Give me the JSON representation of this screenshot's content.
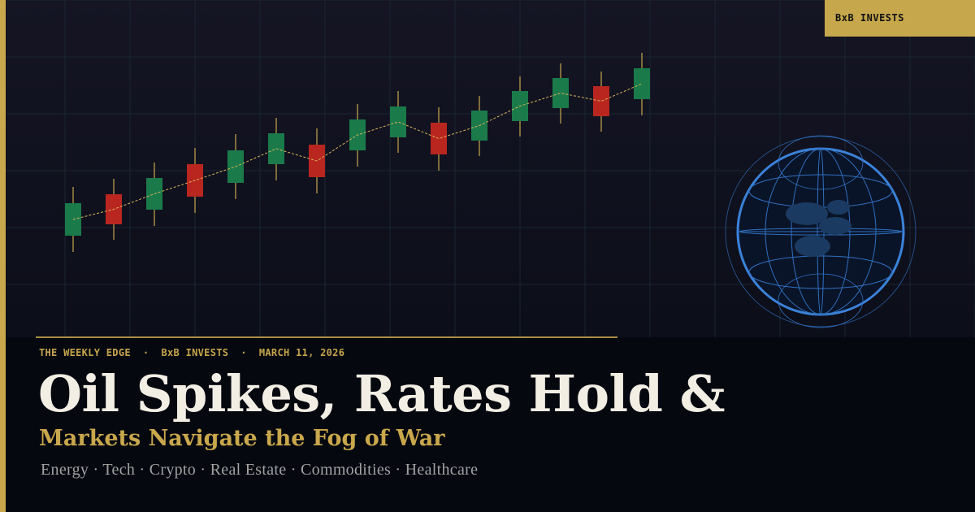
{
  "brand_badge": "BxB INVESTS",
  "kicker": "THE WEEKLY EDGE  ·  BxB INVESTS  ·  MARCH 11, 2026",
  "headline": "Oil Spikes, Rates Hold &",
  "subheadline": "Markets Navigate the Fog of War",
  "sectors": "Energy · Tech · Crypto · Real Estate · Commodities · Healthcare",
  "colors": {
    "accent_gold": "#c9a74c",
    "up": "#1a7a4a",
    "down": "#b8261f",
    "globe": "#2f74c9",
    "background": "#05080f"
  },
  "icons": {
    "globe": "globe-icon"
  },
  "chart_data": {
    "type": "candlestick",
    "trend_line": "dashed moving average",
    "candles": [
      {
        "open": 110,
        "close": 150,
        "high": 170,
        "low": 90,
        "dir": "up"
      },
      {
        "open": 161,
        "close": 124,
        "high": 180,
        "low": 105,
        "dir": "down"
      },
      {
        "open": 142,
        "close": 181,
        "high": 200,
        "low": 122,
        "dir": "up"
      },
      {
        "open": 198,
        "close": 158,
        "high": 218,
        "low": 138,
        "dir": "down"
      },
      {
        "open": 175,
        "close": 215,
        "high": 235,
        "low": 155,
        "dir": "up"
      },
      {
        "open": 198,
        "close": 236,
        "high": 255,
        "low": 178,
        "dir": "up"
      },
      {
        "open": 222,
        "close": 182,
        "high": 242,
        "low": 162,
        "dir": "down"
      },
      {
        "open": 215,
        "close": 253,
        "high": 272,
        "low": 195,
        "dir": "up"
      },
      {
        "open": 231,
        "close": 269,
        "high": 288,
        "low": 212,
        "dir": "up"
      },
      {
        "open": 249,
        "close": 210,
        "high": 268,
        "low": 190,
        "dir": "down"
      },
      {
        "open": 227,
        "close": 264,
        "high": 282,
        "low": 208,
        "dir": "up"
      },
      {
        "open": 251,
        "close": 288,
        "high": 306,
        "low": 232,
        "dir": "up"
      },
      {
        "open": 267,
        "close": 304,
        "high": 322,
        "low": 248,
        "dir": "up"
      },
      {
        "open": 294,
        "close": 257,
        "high": 312,
        "low": 238,
        "dir": "down"
      },
      {
        "open": 278,
        "close": 316,
        "high": 335,
        "low": 258,
        "dir": "up"
      }
    ]
  }
}
